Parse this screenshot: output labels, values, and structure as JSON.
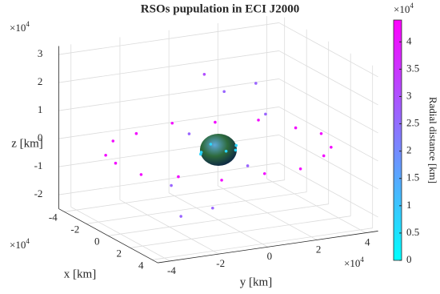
{
  "chart_data": {
    "type": "scatter3d",
    "title": "RSOs pupulation in ECI J2000",
    "xlabel": "x [km]",
    "ylabel": "y [km]",
    "zlabel": "z [km]",
    "multiplier": "×10",
    "multiplier_exp": "4",
    "xlim": [
      -4.5,
      4.5
    ],
    "ylim": [
      -4.5,
      4.5
    ],
    "zlim": [
      -2.5,
      3.3
    ],
    "xticks": [
      -4,
      -2,
      0,
      2,
      4
    ],
    "yticks": [
      -4,
      -2,
      0,
      2,
      4
    ],
    "zticks": [
      -2,
      -1,
      0,
      1,
      2,
      3
    ],
    "grid": true,
    "colorbar": {
      "label": "Radial distance [km]",
      "clim": [
        0,
        4.4
      ],
      "ticks": [
        0,
        0.5,
        1,
        1.5,
        2,
        2.5,
        3,
        3.5,
        4
      ],
      "colormap": [
        "#00ffff",
        "#ff00ff"
      ]
    },
    "series": [
      {
        "x": [
          4.2,
          3.88,
          2.97,
          1.61,
          0,
          -1.61,
          -2.97,
          -3.88,
          -4.2,
          -3.88,
          -2.97,
          -1.61,
          0,
          1.61,
          2.97,
          3.88,
          2.66,
          1.88,
          0,
          -1.88,
          -2.66,
          -1.88,
          0,
          1.88,
          0.5,
          0.7,
          0,
          -0.7,
          0,
          0.5,
          -0.5
        ],
        "y": [
          0,
          1.61,
          2.97,
          3.88,
          4.2,
          3.88,
          2.97,
          1.61,
          0,
          -1.61,
          -2.97,
          -3.88,
          -4.2,
          -3.88,
          -2.97,
          -1.61,
          0,
          1.08,
          1.53,
          1.08,
          0,
          -1.08,
          -1.53,
          -1.08,
          -0.8,
          0,
          0.7,
          0,
          -0.7,
          0.5,
          -0.5
        ],
        "z": [
          0.05,
          -0.05,
          0.05,
          -0.05,
          0.05,
          -0.05,
          0.05,
          -0.05,
          0.05,
          -0.05,
          0.05,
          -0.05,
          0.05,
          -0.05,
          0.05,
          -0.05,
          0,
          1.54,
          2.18,
          1.54,
          0,
          -1.54,
          -2.18,
          -1.54,
          2.9,
          0.1,
          -0.1,
          0.05,
          0,
          0.2,
          -0.2
        ]
      }
    ]
  }
}
